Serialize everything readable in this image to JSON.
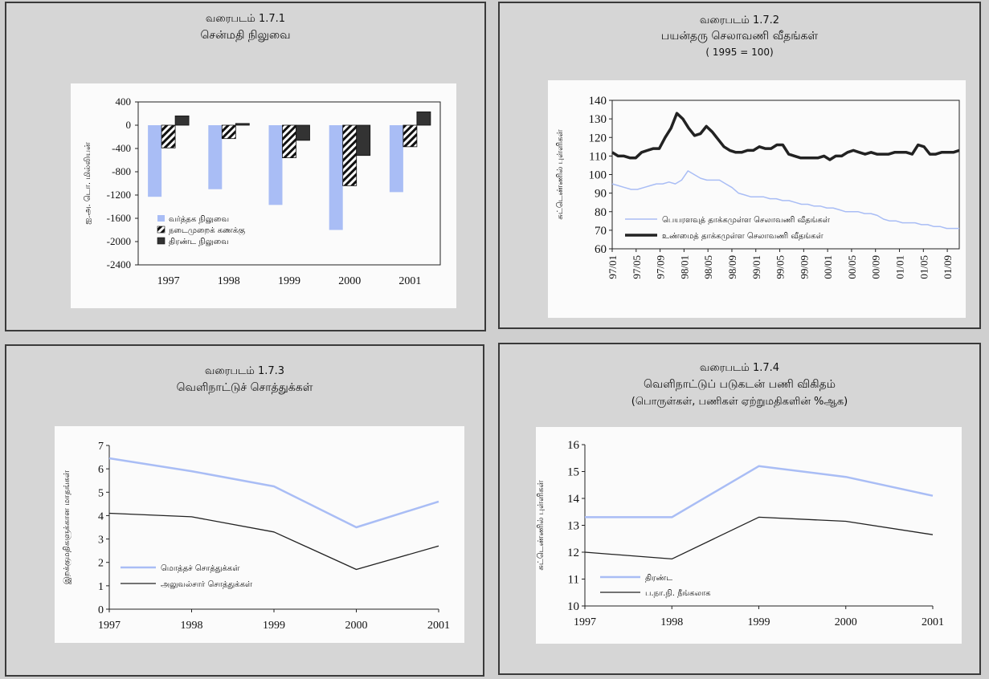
{
  "charts": {
    "c1": {
      "title_line1": "வரைபடம் 1.7.1",
      "title_line2": "சென்மதி நிலுவை"
    },
    "c2": {
      "title_line1": "வரைபடம் 1.7.2",
      "title_line2": "பயன்தரு செலாவணி வீதங்கள்",
      "title_line3": "( 1995 = 100)"
    },
    "c3": {
      "title_line1": "வரைபடம் 1.7.3",
      "title_line2": "வெளிநாட்டுச் சொத்துக்கள்"
    },
    "c4": {
      "title_line1": "வரைபடம் 1.7.4",
      "title_line2": "வெளிநாட்டுப் படுகடன் பணி விகிதம்",
      "title_line3": "(பொருள்கள், பணிகள் ஏற்றுமதிகளின் %ஆக)"
    }
  },
  "chart_data": [
    {
      "type": "bar",
      "title": "சென்மதி நிலுவை",
      "ylabel": "ஐ.அ. டொ. மில்லியன்",
      "categories": [
        "1997",
        "1998",
        "1999",
        "2000",
        "2001"
      ],
      "series": [
        {
          "name": "வர்த்தக நிலுவை",
          "values": [
            -1230,
            -1100,
            -1370,
            -1800,
            -1150
          ],
          "color": "#a9bdf5"
        },
        {
          "name": "நடைமுறைக் கணக்கு",
          "values": [
            -390,
            -230,
            -560,
            -1040,
            -370
          ],
          "color": "hatch"
        },
        {
          "name": "திரண்ட நிலுவை",
          "values": [
            160,
            30,
            -260,
            -520,
            230
          ],
          "color": "#333333"
        }
      ],
      "yticks": [
        "400",
        "0",
        "-400",
        "-800",
        "-1200",
        "-1600",
        "-2000",
        "-2400"
      ],
      "ylim": [
        -2400,
        400
      ],
      "legend_position": "bottom-left"
    },
    {
      "type": "line",
      "title": "பயன்தரு செலாவணி வீதங்கள்",
      "ylabel": "சுட்டெண்ணில் புள்ளிகள்",
      "x_ticks": [
        "97/01",
        "97/05",
        "97/09",
        "98/01",
        "98/05",
        "98/09",
        "99/01",
        "99/05",
        "99/09",
        "00/01",
        "00/05",
        "00/09",
        "01/01",
        "01/05",
        "01/09"
      ],
      "yticks": [
        "140",
        "130",
        "120",
        "110",
        "100",
        "90",
        "80",
        "70",
        "60"
      ],
      "ylim": [
        60,
        140
      ],
      "series": [
        {
          "name": "பெயரளவுத் தாக்கமுள்ள செலாவணி வீதங்கள்",
          "color": "#a9bdf5",
          "values": [
            95,
            94,
            93,
            92,
            92,
            93,
            94,
            95,
            95,
            96,
            95,
            97,
            102,
            100,
            98,
            97,
            97,
            97,
            95,
            93,
            90,
            89,
            88,
            88,
            88,
            87,
            87,
            86,
            86,
            85,
            84,
            84,
            83,
            83,
            82,
            82,
            81,
            80,
            80,
            80,
            79,
            79,
            78,
            76,
            75,
            75,
            74,
            74,
            74,
            73,
            73,
            72,
            72,
            71,
            71,
            71
          ]
        },
        {
          "name": "உண்மைத் தாக்கமுள்ள செலாவணி வீதங்கள்",
          "color": "#222222",
          "values": [
            112,
            110,
            110,
            109,
            109,
            112,
            113,
            114,
            114,
            120,
            125,
            133,
            130,
            125,
            121,
            122,
            126,
            123,
            119,
            115,
            113,
            112,
            112,
            113,
            113,
            115,
            114,
            114,
            116,
            116,
            111,
            110,
            109,
            109,
            109,
            109,
            110,
            108,
            110,
            110,
            112,
            113,
            112,
            111,
            112,
            111,
            111,
            111,
            112,
            112,
            112,
            111,
            116,
            115,
            111,
            111,
            112,
            112,
            112,
            113
          ]
        }
      ],
      "legend_position": "bottom"
    },
    {
      "type": "line",
      "title": "வெளிநாட்டுச் சொத்துக்கள்",
      "ylabel": "இறக்குமதிகளுக்கான மாதங்கள்",
      "x": [
        "1997",
        "1998",
        "1999",
        "2000",
        "2001"
      ],
      "yticks": [
        "7",
        "6",
        "5",
        "4",
        "3",
        "2",
        "1",
        "0"
      ],
      "ylim": [
        0,
        7
      ],
      "series": [
        {
          "name": "மொத்தச் சொத்துக்கள்",
          "values": [
            6.45,
            5.9,
            5.25,
            3.5,
            4.6
          ],
          "color": "#a9bdf5"
        },
        {
          "name": "அலுவல்சார் சொத்துக்கள்",
          "values": [
            4.1,
            3.95,
            3.3,
            1.7,
            2.7
          ],
          "color": "#222222"
        }
      ],
      "legend_position": "bottom-left"
    },
    {
      "type": "line",
      "title": "வெளிநாட்டுப் படுகடன் பணி விகிதம்",
      "ylabel": "சுட்டெண்ணில் புள்ளிகள்",
      "x": [
        "1997",
        "1998",
        "1999",
        "2000",
        "2001"
      ],
      "yticks": [
        "16",
        "15",
        "14",
        "13",
        "12",
        "11",
        "10"
      ],
      "ylim": [
        10,
        16
      ],
      "series": [
        {
          "name": "திரண்ட",
          "values": [
            13.3,
            13.3,
            15.2,
            14.8,
            14.1
          ],
          "color": "#a9bdf5"
        },
        {
          "name": "ப.நா.நி. நீங்கலாக",
          "values": [
            12.0,
            11.75,
            13.3,
            13.15,
            12.65
          ],
          "color": "#222222"
        }
      ],
      "legend_position": "bottom-left"
    }
  ]
}
